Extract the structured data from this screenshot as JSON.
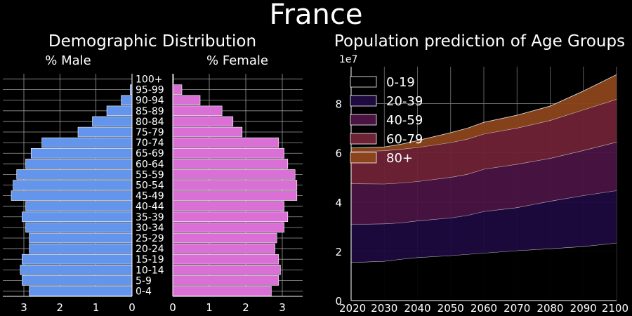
{
  "figure": {
    "title": "France",
    "background": "#000000"
  },
  "chart_data": [
    {
      "type": "bar",
      "orientation": "horizontal",
      "title": "Demographic Distribution",
      "left_label": "% Male",
      "right_label": "% Female",
      "categories": [
        "0-4",
        "5-9",
        "10-14",
        "15-19",
        "20-24",
        "25-29",
        "30-34",
        "35-39",
        "40-44",
        "45-49",
        "50-54",
        "55-59",
        "60-64",
        "65-69",
        "70-74",
        "75-79",
        "80-84",
        "85-89",
        "90-94",
        "95-99",
        "100+"
      ],
      "series": [
        {
          "name": "% Male",
          "color": "#6495ED",
          "values": [
            2.85,
            3.05,
            3.1,
            3.05,
            2.85,
            2.85,
            2.95,
            3.05,
            2.95,
            3.35,
            3.3,
            3.2,
            2.95,
            2.8,
            2.5,
            1.5,
            1.1,
            0.7,
            0.3,
            0.05,
            0.0
          ]
        },
        {
          "name": "% Female",
          "color": "#DA70D6",
          "values": [
            2.7,
            2.9,
            2.95,
            2.9,
            2.8,
            2.85,
            3.05,
            3.15,
            3.05,
            3.4,
            3.4,
            3.35,
            3.15,
            3.05,
            2.9,
            1.9,
            1.65,
            1.35,
            0.75,
            0.25,
            0.02
          ]
        }
      ],
      "x_ticks": [
        0,
        1,
        2,
        3
      ],
      "xlim": [
        0,
        3.5
      ],
      "grid": true
    },
    {
      "type": "area",
      "stacked": true,
      "title": "Population prediction of Age Groups",
      "x": [
        2020,
        2030,
        2035,
        2040,
        2050,
        2055,
        2060,
        2070,
        2080,
        2090,
        2100
      ],
      "series": [
        {
          "name": "0-19",
          "color": "#000000",
          "values": [
            15500000,
            16000000,
            16800000,
            17500000,
            18300000,
            18800000,
            19300000,
            20300000,
            21100000,
            22000000,
            23400000
          ]
        },
        {
          "name": "20-39",
          "color": "#1E0A3F",
          "values": [
            15500000,
            15200000,
            14800000,
            14900000,
            15300000,
            15800000,
            16900000,
            17500000,
            19300000,
            20700000,
            21300000
          ]
        },
        {
          "name": "40-59",
          "color": "#4A1342",
          "values": [
            16500000,
            16200000,
            16200000,
            16000000,
            16500000,
            16700000,
            17200000,
            17600000,
            17400000,
            18300000,
            19700000
          ]
        },
        {
          "name": "60-79",
          "color": "#6E2235",
          "values": [
            13000000,
            13500000,
            13700000,
            13800000,
            14100000,
            14300000,
            14300000,
            14700000,
            15400000,
            16500000,
            17400000
          ]
        },
        {
          "name": "80+",
          "color": "#8B441B",
          "values": [
            1500000,
            1500000,
            2000000,
            2800000,
            4000000,
            4400000,
            4700000,
            5200000,
            5800000,
            7600000,
            10000000
          ]
        }
      ],
      "legend_labels": [
        "0-19",
        "20-39",
        "40-59",
        "60-79",
        "80+"
      ],
      "legend_placement": "upper-left",
      "offset_label": "1e7",
      "y_ticks": [
        0,
        2,
        4,
        6,
        8
      ],
      "x_ticks": [
        2020,
        2030,
        2040,
        2050,
        2060,
        2070,
        2080,
        2090,
        2100
      ],
      "xlim": [
        2020,
        2100
      ],
      "ylim": [
        0,
        95000000
      ],
      "grid": true
    }
  ]
}
